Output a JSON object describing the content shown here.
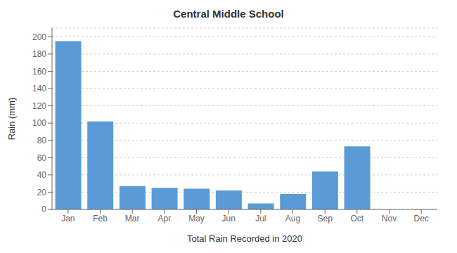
{
  "chart_data": {
    "type": "bar",
    "title": "Central Middle School",
    "xlabel": "Total Rain Recorded in 2020",
    "ylabel": "Rain (mm)",
    "categories": [
      "Jan",
      "Feb",
      "Mar",
      "Apr",
      "May",
      "Jun",
      "Jul",
      "Aug",
      "Sep",
      "Oct",
      "Nov",
      "Dec"
    ],
    "values": [
      195,
      102,
      27,
      25,
      24,
      22,
      7,
      18,
      44,
      73,
      0,
      0
    ],
    "color": "#5B9BD5",
    "ylim": [
      0,
      210
    ],
    "yticks": [
      0,
      20,
      40,
      60,
      80,
      100,
      120,
      140,
      160,
      180,
      200
    ],
    "grid": true
  }
}
